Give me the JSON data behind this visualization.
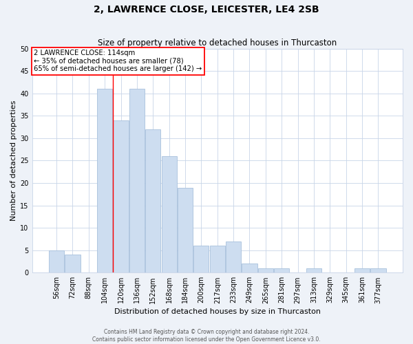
{
  "title": "2, LAWRENCE CLOSE, LEICESTER, LE4 2SB",
  "subtitle": "Size of property relative to detached houses in Thurcaston",
  "xlabel": "Distribution of detached houses by size in Thurcaston",
  "ylabel": "Number of detached properties",
  "categories": [
    "56sqm",
    "72sqm",
    "88sqm",
    "104sqm",
    "120sqm",
    "136sqm",
    "152sqm",
    "168sqm",
    "184sqm",
    "200sqm",
    "217sqm",
    "233sqm",
    "249sqm",
    "265sqm",
    "281sqm",
    "297sqm",
    "313sqm",
    "329sqm",
    "345sqm",
    "361sqm",
    "377sqm"
  ],
  "values": [
    5,
    4,
    0,
    41,
    34,
    41,
    32,
    26,
    19,
    6,
    6,
    7,
    2,
    1,
    1,
    0,
    1,
    0,
    0,
    1,
    1
  ],
  "bar_color": "#cdddf0",
  "bar_edge_color": "#a8c0dc",
  "ylim": [
    0,
    50
  ],
  "yticks": [
    0,
    5,
    10,
    15,
    20,
    25,
    30,
    35,
    40,
    45,
    50
  ],
  "red_line_x": 3.5,
  "annotation_line1": "2 LAWRENCE CLOSE: 114sqm",
  "annotation_line2": "← 35% of detached houses are smaller (78)",
  "annotation_line3": "65% of semi-detached houses are larger (142) →",
  "footer1": "Contains HM Land Registry data © Crown copyright and database right 2024.",
  "footer2": "Contains public sector information licensed under the Open Government Licence v3.0.",
  "bg_color": "#eef2f8",
  "plot_bg_color": "#ffffff",
  "grid_color": "#c8d4e8",
  "title_fontsize": 10,
  "subtitle_fontsize": 8.5,
  "xlabel_fontsize": 8,
  "ylabel_fontsize": 8,
  "tick_fontsize": 7,
  "footer_fontsize": 5.5
}
